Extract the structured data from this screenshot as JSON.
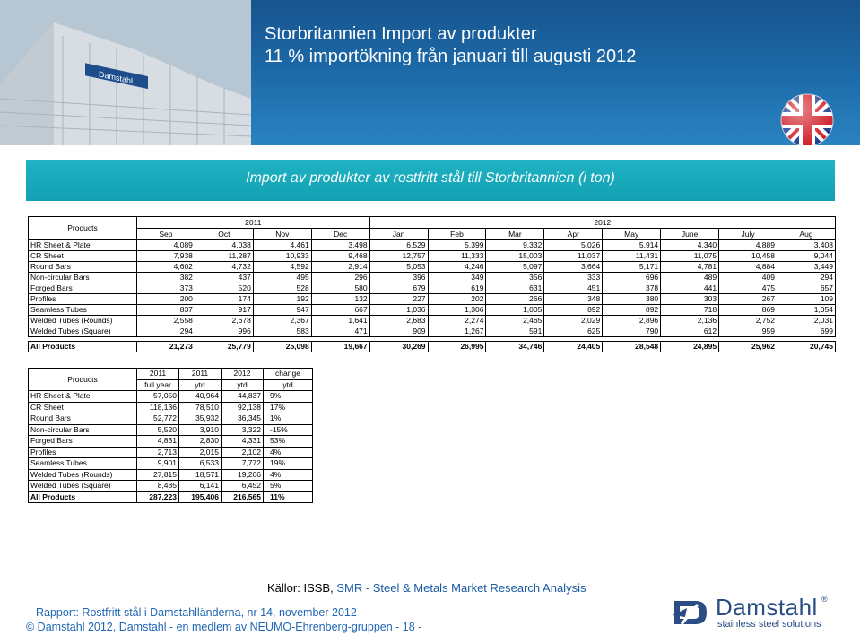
{
  "header": {
    "title_line1": "Storbritannien   Import av produkter",
    "title_line2": "11 % importökning från januari till augusti 2012",
    "building_sign": "Damstahl"
  },
  "banner": {
    "title": "Import av produkter av rostfritt stål till Storbritannien (i ton)"
  },
  "monthly": {
    "products_label": "Products",
    "year_2011": "2011",
    "year_2012": "2012",
    "months": [
      "Sep",
      "Oct",
      "Nov",
      "Dec",
      "Jan",
      "Feb",
      "Mar",
      "Apr",
      "May",
      "June",
      "July",
      "Aug"
    ],
    "rows": [
      {
        "name": "HR Sheet & Plate",
        "values": [
          "4,089",
          "4,038",
          "4,461",
          "3,498",
          "6,529",
          "5,399",
          "9,332",
          "5,026",
          "5,914",
          "4,340",
          "4,889",
          "3,408"
        ]
      },
      {
        "name": "CR Sheet",
        "values": [
          "7,938",
          "11,287",
          "10,933",
          "9,468",
          "12,757",
          "11,333",
          "15,003",
          "11,037",
          "11,431",
          "11,075",
          "10,458",
          "9,044"
        ]
      },
      {
        "name": "Round Bars",
        "values": [
          "4,602",
          "4,732",
          "4,592",
          "2,914",
          "5,053",
          "4,246",
          "5,097",
          "3,664",
          "5,171",
          "4,781",
          "4,884",
          "3,449"
        ]
      },
      {
        "name": "Non-circular Bars",
        "values": [
          "382",
          "437",
          "495",
          "296",
          "396",
          "349",
          "356",
          "333",
          "696",
          "489",
          "409",
          "294"
        ]
      },
      {
        "name": "Forged Bars",
        "values": [
          "373",
          "520",
          "528",
          "580",
          "679",
          "619",
          "631",
          "451",
          "378",
          "441",
          "475",
          "657"
        ]
      },
      {
        "name": "Profiles",
        "values": [
          "200",
          "174",
          "192",
          "132",
          "227",
          "202",
          "266",
          "348",
          "380",
          "303",
          "267",
          "109"
        ]
      },
      {
        "name": "Seamless Tubes",
        "values": [
          "837",
          "917",
          "947",
          "667",
          "1,036",
          "1,306",
          "1,005",
          "892",
          "892",
          "718",
          "869",
          "1,054"
        ]
      },
      {
        "name": "Welded Tubes (Rounds)",
        "values": [
          "2,558",
          "2,678",
          "2,367",
          "1,641",
          "2,683",
          "2,274",
          "2,465",
          "2,029",
          "2,896",
          "2,136",
          "2,752",
          "2,031"
        ]
      },
      {
        "name": "Welded Tubes (Square)",
        "values": [
          "294",
          "996",
          "583",
          "471",
          "909",
          "1,267",
          "591",
          "625",
          "790",
          "612",
          "959",
          "699"
        ]
      }
    ],
    "total": {
      "name": "All Products",
      "values": [
        "21,273",
        "25,779",
        "25,098",
        "19,667",
        "30,269",
        "26,995",
        "34,746",
        "24,405",
        "28,548",
        "24,895",
        "25,962",
        "20,745"
      ]
    }
  },
  "summary": {
    "products_label": "Products",
    "headers_top": [
      "2011",
      "2011",
      "2012",
      "change"
    ],
    "headers_bottom": [
      "full year",
      "ytd",
      "ytd",
      "ytd"
    ],
    "rows": [
      {
        "name": "HR Sheet & Plate",
        "values": [
          "57,050",
          "40,964",
          "44,837",
          "9%"
        ]
      },
      {
        "name": "CR Sheet",
        "values": [
          "118,136",
          "78,510",
          "92,138",
          "17%"
        ]
      },
      {
        "name": "Round Bars",
        "values": [
          "52,772",
          "35,932",
          "36,345",
          "1%"
        ]
      },
      {
        "name": "Non-circular Bars",
        "values": [
          "5,520",
          "3,910",
          "3,322",
          "-15%"
        ]
      },
      {
        "name": "Forged Bars",
        "values": [
          "4,831",
          "2,830",
          "4,331",
          "53%"
        ]
      },
      {
        "name": "Profiles",
        "values": [
          "2,713",
          "2,015",
          "2,102",
          "4%"
        ]
      },
      {
        "name": "Seamless Tubes",
        "values": [
          "9,901",
          "6,533",
          "7,772",
          "19%"
        ]
      },
      {
        "name": "Welded Tubes (Rounds)",
        "values": [
          "27,815",
          "18,571",
          "19,266",
          "4%"
        ]
      },
      {
        "name": "Welded Tubes (Square)",
        "values": [
          "8,485",
          "6,141",
          "6,452",
          "5%"
        ]
      }
    ],
    "total": {
      "name": "All Products",
      "values": [
        "287,223",
        "195,406",
        "216,565",
        "11%"
      ]
    }
  },
  "footer": {
    "sources_prefix": "Källor: ISSB, ",
    "sources_highlight": "SMR - Steel & Metals Market Research Analysis",
    "report": "Rapport: Rostfritt stål i Damstahlländerna, nr 14, november 2012",
    "copyright": "© Damstahl 2012, Damstahl - en medlem av NEUMO-Ehrenberg-gruppen - 18 -"
  },
  "logo": {
    "name": "Damstahl",
    "registered": "®",
    "tagline": "stainless steel solutions",
    "color": "#2a4d86"
  },
  "colors": {
    "header_blue": "#1c6aa8",
    "banner_teal": "#13a0b3",
    "footer_blue": "#1f66b3"
  }
}
